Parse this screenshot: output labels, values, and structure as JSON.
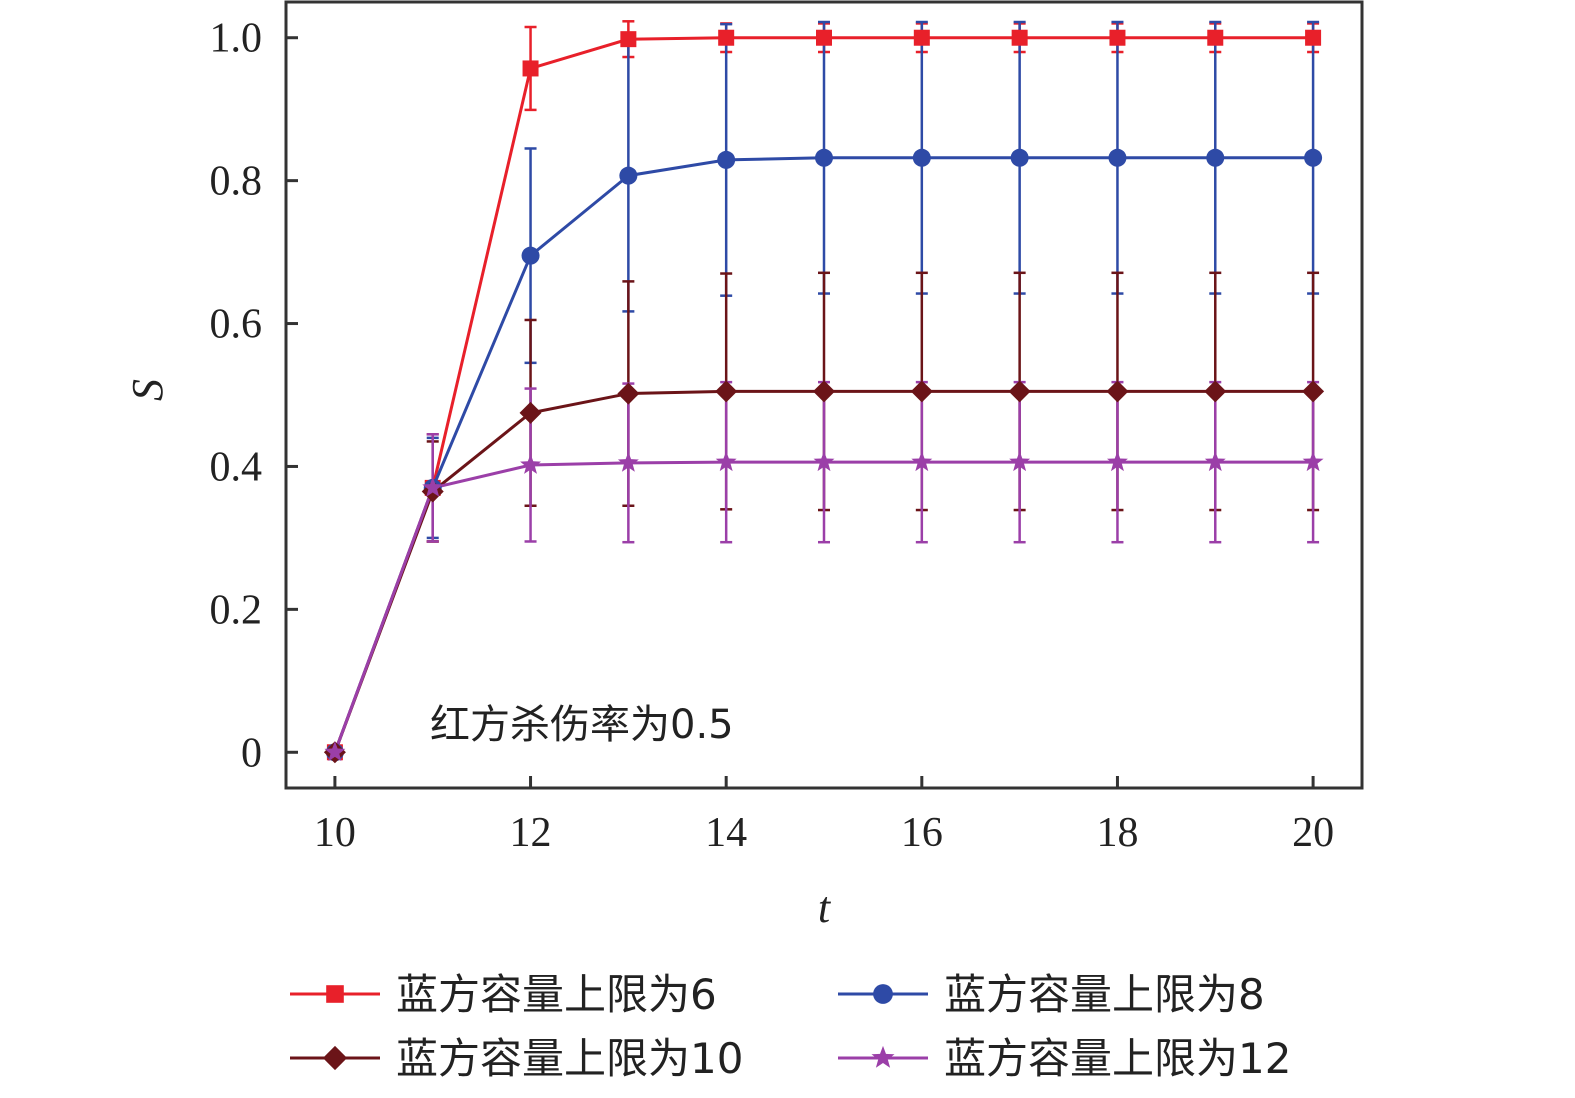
{
  "chart_data": {
    "type": "line",
    "xlabel": "t",
    "ylabel": "S",
    "xlim": [
      9.5,
      20.5
    ],
    "ylim": [
      -0.05,
      1.05
    ],
    "xticks": [
      10,
      12,
      14,
      16,
      18,
      20
    ],
    "yticks": [
      0,
      0.2,
      0.4,
      0.6,
      0.8,
      1.0
    ],
    "xtick_labels": [
      "10",
      "12",
      "14",
      "16",
      "18",
      "20"
    ],
    "ytick_labels": [
      "0",
      "0.2",
      "0.4",
      "0.6",
      "0.8",
      "1.0"
    ],
    "annotation": "红方杀伤率为0.5",
    "legend_position": "bottom",
    "grid": false,
    "x": [
      10,
      11,
      12,
      13,
      14,
      15,
      16,
      17,
      18,
      19,
      20
    ],
    "series": [
      {
        "name": "蓝方容量上限为6",
        "color": "#e8202a",
        "marker": "square",
        "values": [
          0,
          0.37,
          0.957,
          0.998,
          1.0,
          1.0,
          1.0,
          1.0,
          1.0,
          1.0,
          1.0
        ],
        "errors": [
          0,
          0.075,
          0.058,
          0.025,
          0.02,
          0.02,
          0.02,
          0.02,
          0.02,
          0.02,
          0.02
        ]
      },
      {
        "name": "蓝方容量上限为8",
        "color": "#2e4aa6",
        "marker": "circle",
        "values": [
          0,
          0.37,
          0.695,
          0.807,
          0.829,
          0.832,
          0.832,
          0.832,
          0.832,
          0.832,
          0.832
        ],
        "errors": [
          0,
          0.07,
          0.15,
          0.19,
          0.19,
          0.19,
          0.19,
          0.19,
          0.19,
          0.19,
          0.19
        ]
      },
      {
        "name": "蓝方容量上限为10",
        "color": "#6b1418",
        "marker": "diamond",
        "values": [
          0,
          0.365,
          0.475,
          0.502,
          0.505,
          0.505,
          0.505,
          0.505,
          0.505,
          0.505,
          0.505
        ],
        "errors": [
          0,
          0.07,
          0.13,
          0.157,
          0.165,
          0.166,
          0.166,
          0.166,
          0.166,
          0.166,
          0.166
        ]
      },
      {
        "name": "蓝方容量上限为12",
        "color": "#9b3fa8",
        "marker": "star",
        "values": [
          0,
          0.37,
          0.402,
          0.405,
          0.406,
          0.406,
          0.406,
          0.406,
          0.406,
          0.406,
          0.406
        ],
        "errors": [
          0,
          0.075,
          0.107,
          0.111,
          0.112,
          0.112,
          0.112,
          0.112,
          0.112,
          0.112,
          0.112
        ]
      }
    ]
  }
}
